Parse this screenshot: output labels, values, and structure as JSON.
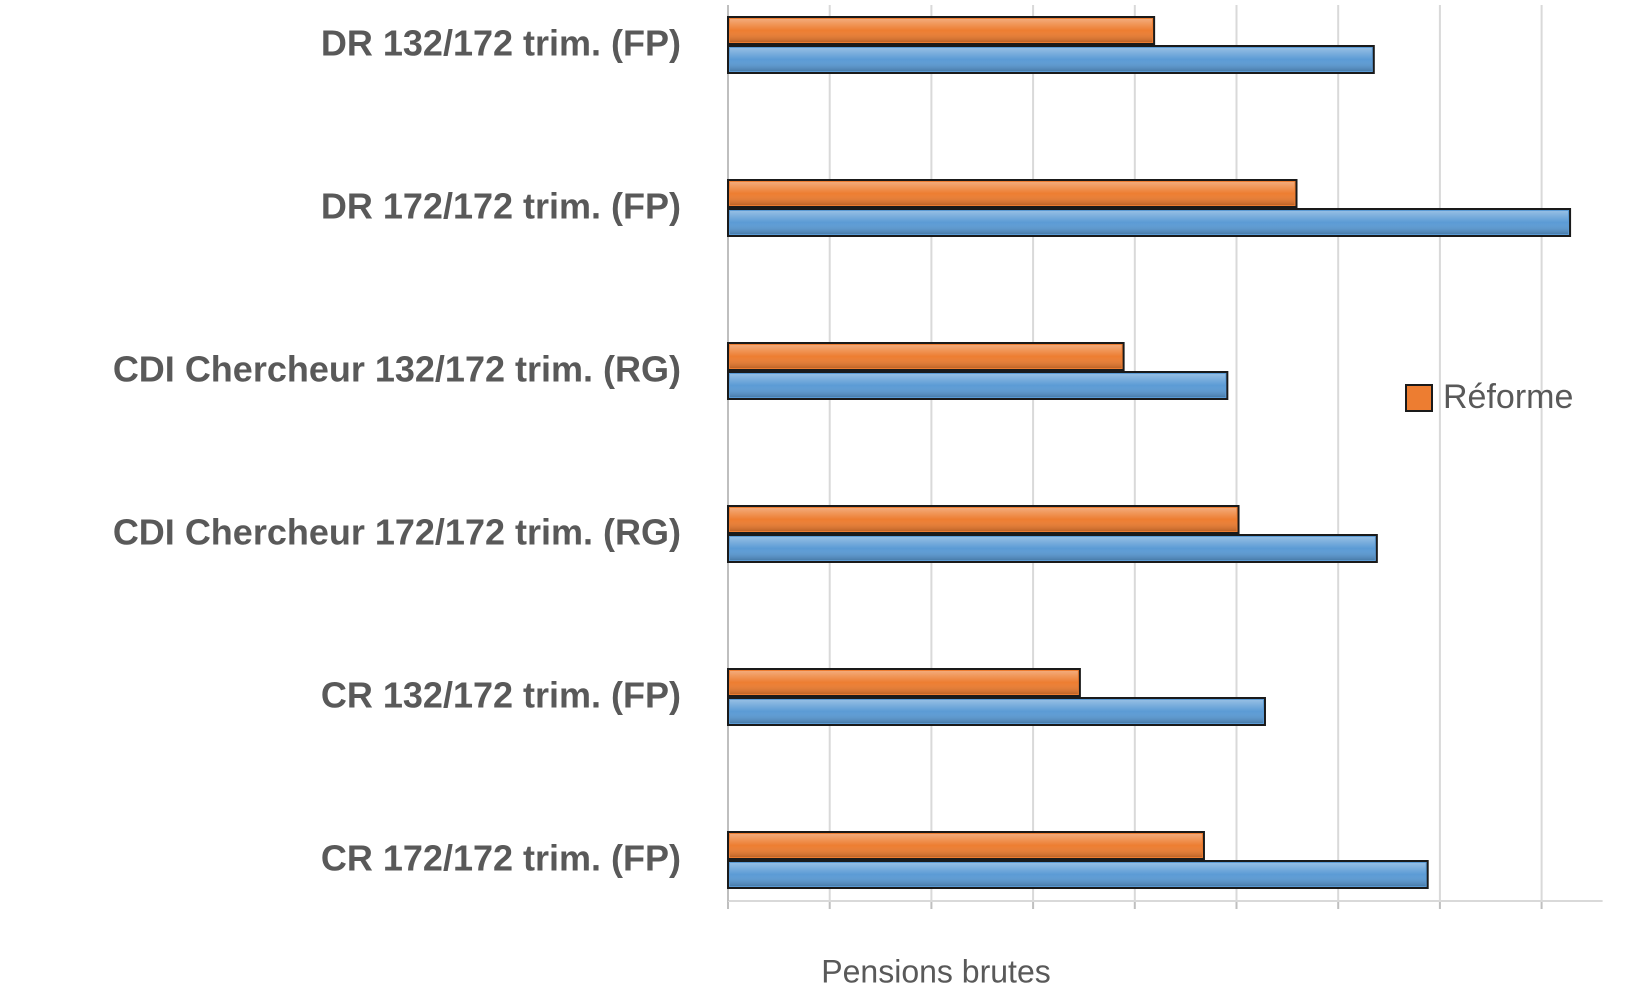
{
  "chart_data": {
    "type": "bar",
    "orientation": "horizontal",
    "x_label": "Pensions brutes",
    "categories": [
      "DR 132/172 trim. (FP)",
      "DR 172/172 trim. (FP)",
      "CDI Chercheur 132/172 trim. (RG)",
      "CDI Chercheur 172/172 trim. (RG)",
      "CR 132/172 trim. (FP)",
      "CR 172/172 trim. (FP)"
    ],
    "series": [
      {
        "name": "Réforme",
        "color": "#ed7d31",
        "values": [
          4.19,
          5.59,
          3.89,
          5.02,
          3.46,
          4.68
        ]
      },
      {
        "color": "#5b9bd5",
        "values": [
          6.35,
          8.28,
          4.91,
          6.38,
          5.28,
          6.88
        ]
      }
    ],
    "xlim": [
      0,
      8.6
    ],
    "xticks": [
      0,
      1,
      2,
      3,
      4,
      5,
      6,
      7,
      8
    ],
    "grid": true,
    "legend": "right"
  }
}
